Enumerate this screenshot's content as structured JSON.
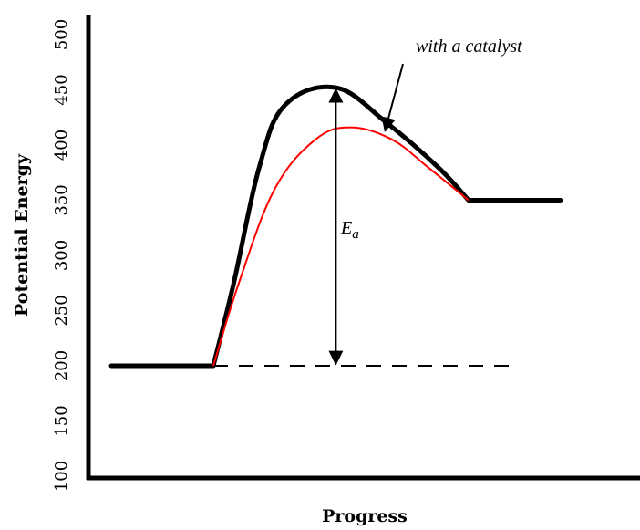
{
  "chart_data": {
    "type": "line",
    "xlabel": "Progress",
    "ylabel": "Potential Energy",
    "ylim": [
      100,
      500
    ],
    "yticks": [
      "100",
      "150",
      "200",
      "250",
      "300",
      "350",
      "400",
      "450",
      "500"
    ],
    "grid": false,
    "legend": "none",
    "series": [
      {
        "color": "#000000",
        "style": "thick",
        "points": [
          [
            0,
            200
          ],
          [
            1,
            200
          ],
          [
            1.2,
            275
          ],
          [
            1.45,
            380
          ],
          [
            1.7,
            436
          ],
          [
            2.2,
            452
          ],
          [
            2.7,
            420
          ],
          [
            3.2,
            380
          ],
          [
            3.5,
            350
          ],
          [
            4.4,
            350
          ]
        ]
      },
      {
        "color": "#ff0000",
        "style": "thin",
        "points": [
          [
            1,
            200
          ],
          [
            1.25,
            275
          ],
          [
            1.6,
            360
          ],
          [
            2.0,
            405
          ],
          [
            2.35,
            416
          ],
          [
            2.75,
            405
          ],
          [
            3.1,
            380
          ],
          [
            3.5,
            350
          ]
        ]
      }
    ],
    "annotations": {
      "catalyst_text": "with a catalyst",
      "ea_symbol": "E",
      "ea_subscript": "a",
      "ea_arrow": {
        "x": 2.2,
        "from": 200,
        "to": 452
      },
      "baseline": {
        "y": 200,
        "x_start": 1,
        "x_end": 4.0
      },
      "catalyst_arrow_target": [
        2.7,
        413
      ]
    }
  }
}
